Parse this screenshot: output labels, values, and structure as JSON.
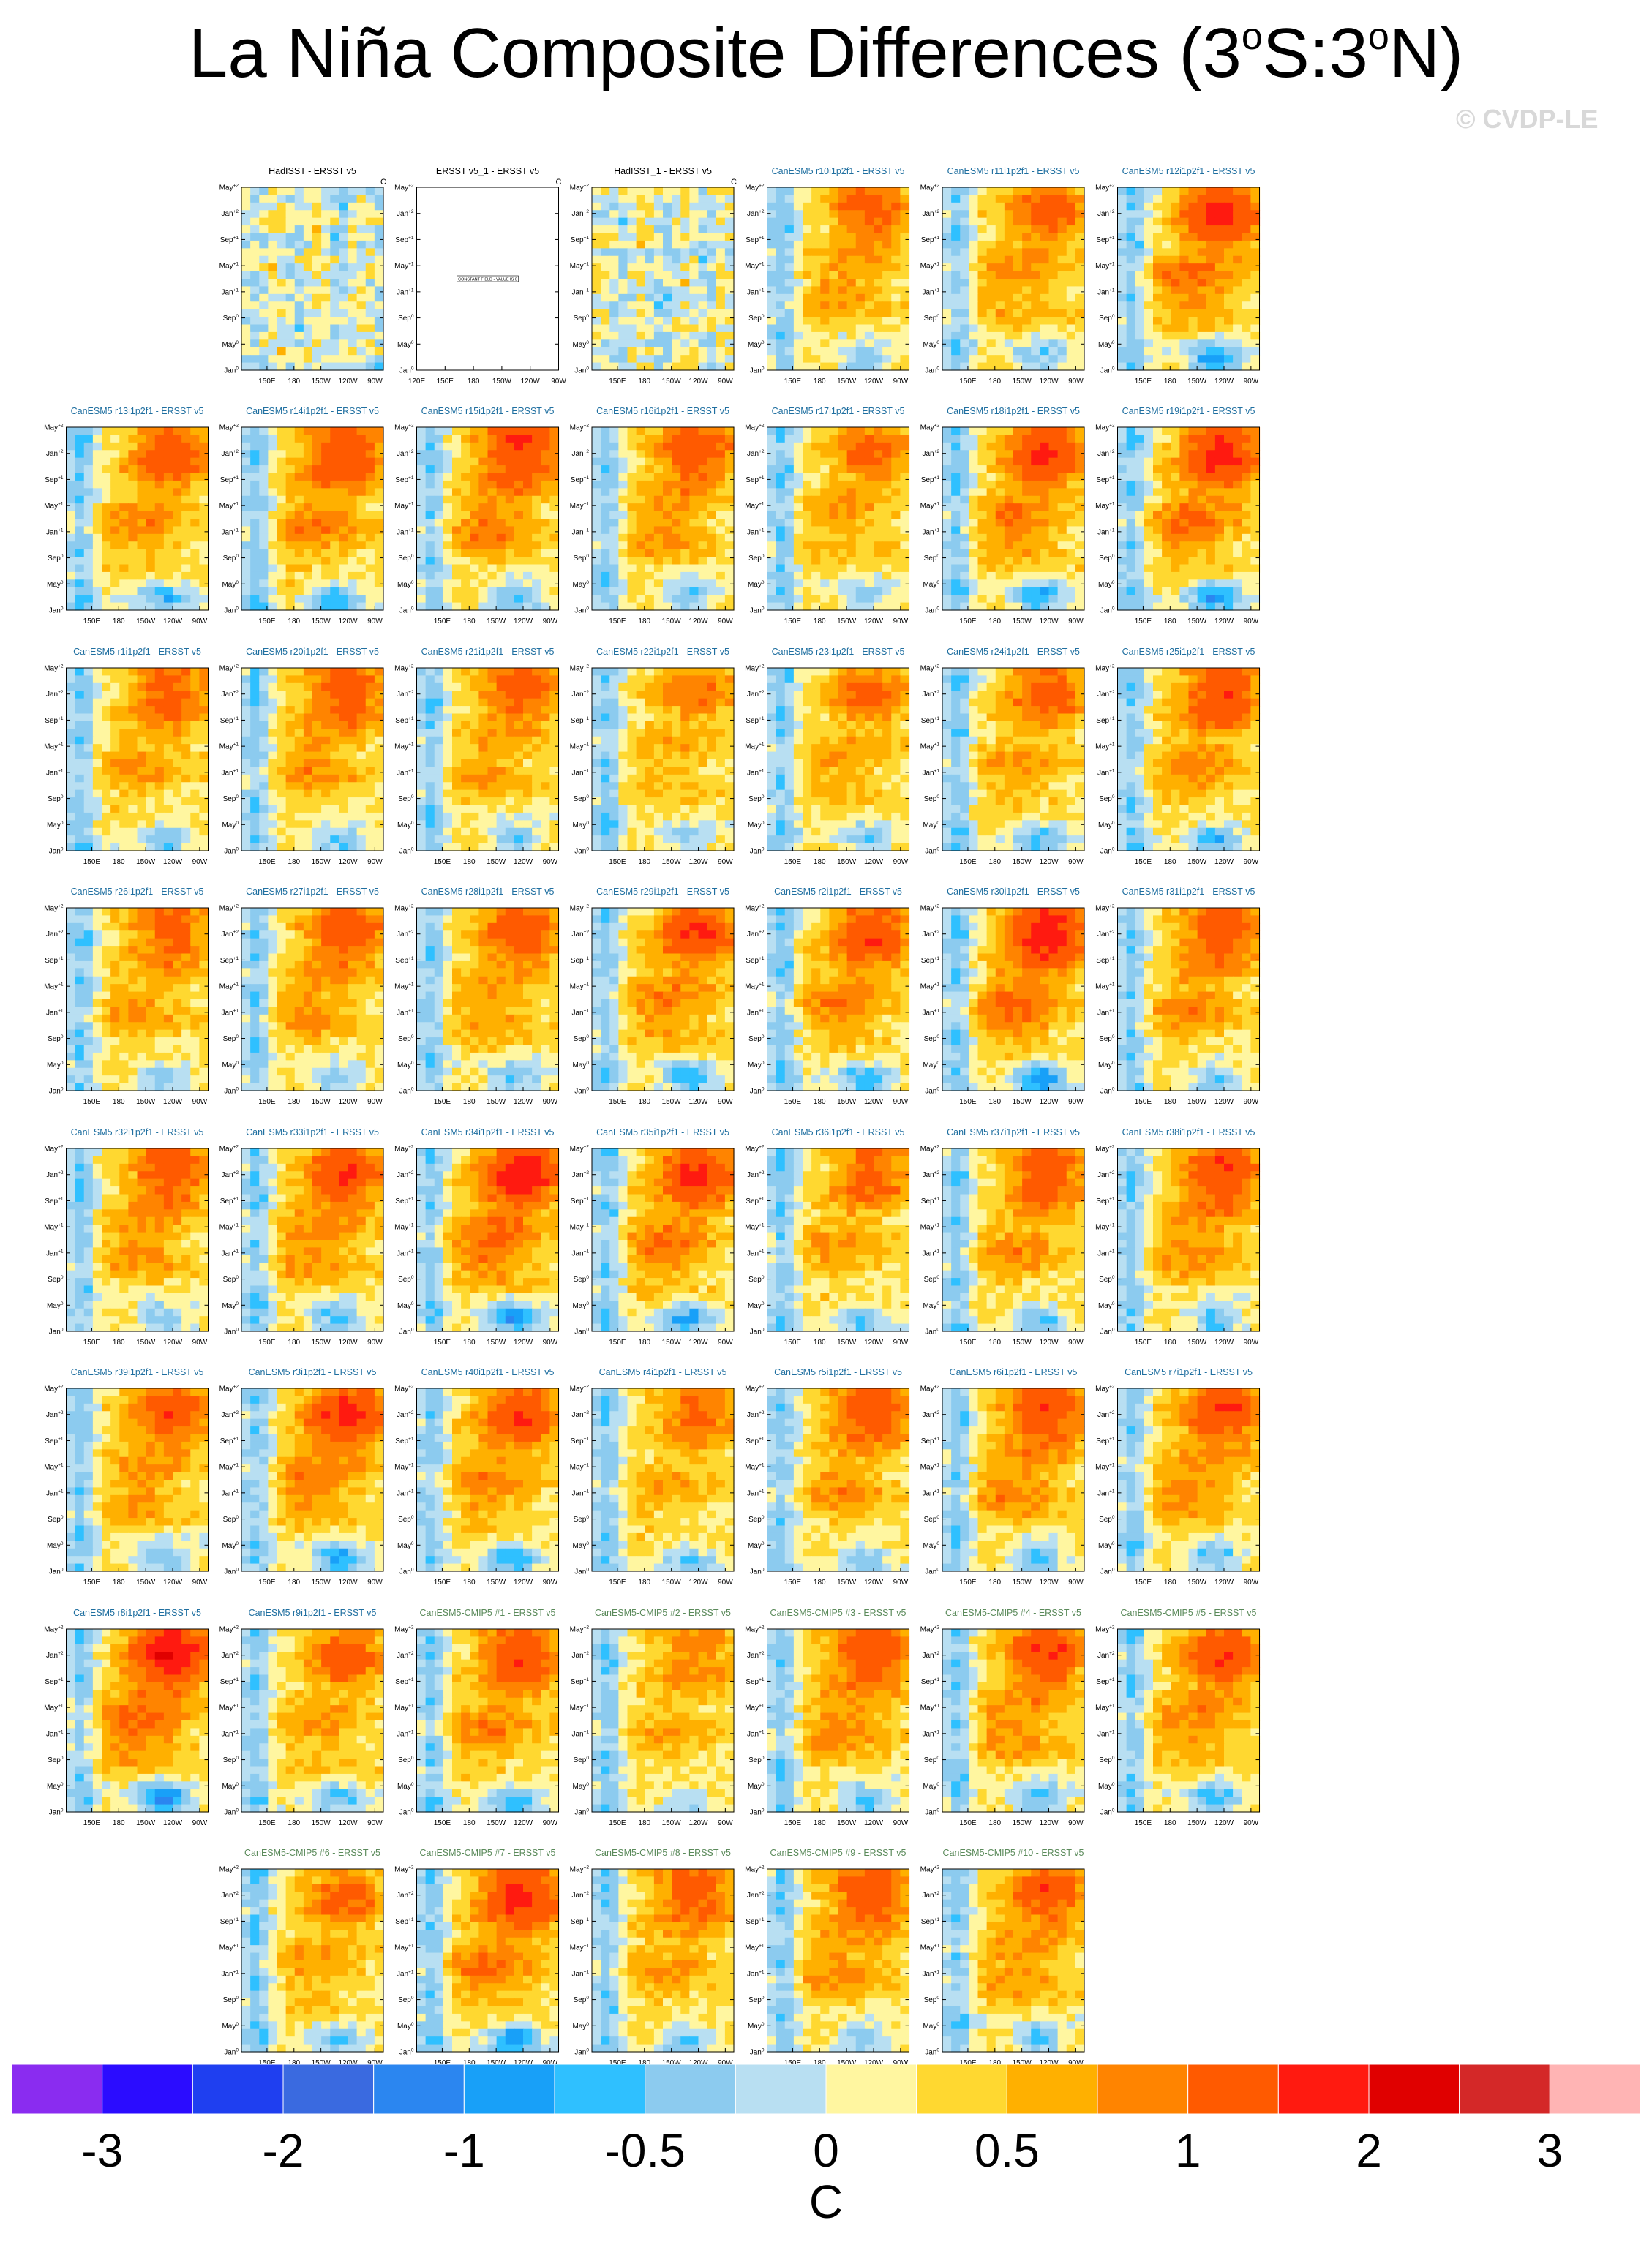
{
  "title": {
    "prefix": "La Niña Composite Differences (3",
    "deg1": "o",
    "mid": "S:3",
    "deg2": "o",
    "suffix": "N)"
  },
  "watermark": "© CVDP-LE",
  "colors": {
    "obs_title": "#000000",
    "model_title": "#1f6fa0",
    "cmip5_title": "#5a8a5a"
  },
  "chart_data": {
    "type": "heatmap",
    "panel_units": "C",
    "x_ticks": [
      "150E",
      "180",
      "150W",
      "120W",
      "90W"
    ],
    "x_ticks_first_extra": [
      "120E",
      "150E",
      "180",
      "150W",
      "120W",
      "90W"
    ],
    "y_ticks": [
      {
        "base": "May",
        "sup": "+2"
      },
      {
        "base": "Jan",
        "sup": "+2"
      },
      {
        "base": "Sep",
        "sup": "+1"
      },
      {
        "base": "May",
        "sup": "+1"
      },
      {
        "base": "Jan",
        "sup": "+1"
      },
      {
        "base": "Sep",
        "sup": "0"
      },
      {
        "base": "May",
        "sup": "0"
      },
      {
        "base": "Jan",
        "sup": "0"
      }
    ],
    "constant_field_label": "CONSTANT FIELD - VALUE IS 0",
    "panels": [
      {
        "title": "HadISST - ERSST v5",
        "kind": "obs",
        "units": "C",
        "strength": 0.2,
        "seed": 1
      },
      {
        "title": "ERSST v5_1 - ERSST v5",
        "kind": "obs",
        "units": "C",
        "constant": true,
        "seed": 2
      },
      {
        "title": "HadISST_1 - ERSST v5",
        "kind": "obs",
        "units": "C",
        "strength": 0.2,
        "seed": 3
      },
      {
        "title": "CanESM5 r10i1p2f1 - ERSST v5",
        "kind": "model",
        "strength": 0.8,
        "seed": 4
      },
      {
        "title": "CanESM5 r11i1p2f1 - ERSST v5",
        "kind": "model",
        "strength": 0.8,
        "seed": 5
      },
      {
        "title": "CanESM5 r12i1p2f1 - ERSST v5",
        "kind": "model",
        "strength": 1.2,
        "seed": 6
      },
      {
        "title": "CanESM5 r13i1p2f1 - ERSST v5",
        "kind": "model",
        "strength": 0.9,
        "seed": 7
      },
      {
        "title": "CanESM5 r14i1p2f1 - ERSST v5",
        "kind": "model",
        "strength": 1.0,
        "seed": 8
      },
      {
        "title": "CanESM5 r15i1p2f1 - ERSST v5",
        "kind": "model",
        "strength": 1.1,
        "seed": 9
      },
      {
        "title": "CanESM5 r16i1p2f1 - ERSST v5",
        "kind": "model",
        "strength": 0.9,
        "seed": 10
      },
      {
        "title": "CanESM5 r17i1p2f1 - ERSST v5",
        "kind": "model",
        "strength": 0.7,
        "seed": 11
      },
      {
        "title": "CanESM5 r18i1p2f1 - ERSST v5",
        "kind": "model",
        "strength": 1.1,
        "seed": 12
      },
      {
        "title": "CanESM5 r19i1p2f1 - ERSST v5",
        "kind": "model",
        "strength": 1.2,
        "seed": 13
      },
      {
        "title": "CanESM5 r1i1p2f1 - ERSST v5",
        "kind": "model",
        "strength": 0.8,
        "seed": 14
      },
      {
        "title": "CanESM5 r20i1p2f1 - ERSST v5",
        "kind": "model",
        "strength": 0.9,
        "seed": 15
      },
      {
        "title": "CanESM5 r21i1p2f1 - ERSST v5",
        "kind": "model",
        "strength": 0.8,
        "seed": 16
      },
      {
        "title": "CanESM5 r22i1p2f1 - ERSST v5",
        "kind": "model",
        "strength": 0.6,
        "seed": 17
      },
      {
        "title": "CanESM5 r23i1p2f1 - ERSST v5",
        "kind": "model",
        "strength": 0.7,
        "seed": 18
      },
      {
        "title": "CanESM5 r24i1p2f1 - ERSST v5",
        "kind": "model",
        "strength": 0.8,
        "seed": 19
      },
      {
        "title": "CanESM5 r25i1p2f1 - ERSST v5",
        "kind": "model",
        "strength": 1.0,
        "seed": 20
      },
      {
        "title": "CanESM5 r26i1p2f1 - ERSST v5",
        "kind": "model",
        "strength": 0.8,
        "seed": 21
      },
      {
        "title": "CanESM5 r27i1p2f1 - ERSST v5",
        "kind": "model",
        "strength": 0.9,
        "seed": 22
      },
      {
        "title": "CanESM5 r28i1p2f1 - ERSST v5",
        "kind": "model",
        "strength": 0.9,
        "seed": 23
      },
      {
        "title": "CanESM5 r29i1p2f1 - ERSST v5",
        "kind": "model",
        "strength": 1.0,
        "seed": 24
      },
      {
        "title": "CanESM5 r2i1p2f1 - ERSST v5",
        "kind": "model",
        "strength": 1.0,
        "seed": 25
      },
      {
        "title": "CanESM5 r30i1p2f1 - ERSST v5",
        "kind": "model",
        "strength": 1.3,
        "seed": 26
      },
      {
        "title": "CanESM5 r31i1p2f1 - ERSST v5",
        "kind": "model",
        "strength": 0.9,
        "seed": 27
      },
      {
        "title": "CanESM5 r32i1p2f1 - ERSST v5",
        "kind": "model",
        "strength": 0.9,
        "seed": 28
      },
      {
        "title": "CanESM5 r33i1p2f1 - ERSST v5",
        "kind": "model",
        "strength": 1.0,
        "seed": 29
      },
      {
        "title": "CanESM5 r34i1p2f1 - ERSST v5",
        "kind": "model",
        "strength": 1.3,
        "seed": 30
      },
      {
        "title": "CanESM5 r35i1p2f1 - ERSST v5",
        "kind": "model",
        "strength": 1.1,
        "seed": 31
      },
      {
        "title": "CanESM5 r36i1p2f1 - ERSST v5",
        "kind": "model",
        "strength": 0.8,
        "seed": 32
      },
      {
        "title": "CanESM5 r37i1p2f1 - ERSST v5",
        "kind": "model",
        "strength": 0.9,
        "seed": 33
      },
      {
        "title": "CanESM5 r38i1p2f1 - ERSST v5",
        "kind": "model",
        "strength": 1.0,
        "seed": 34
      },
      {
        "title": "CanESM5 r39i1p2f1 - ERSST v5",
        "kind": "model",
        "strength": 0.9,
        "seed": 35
      },
      {
        "title": "CanESM5 r3i1p2f1 - ERSST v5",
        "kind": "model",
        "strength": 1.1,
        "seed": 36
      },
      {
        "title": "CanESM5 r40i1p2f1 - ERSST v5",
        "kind": "model",
        "strength": 1.0,
        "seed": 37
      },
      {
        "title": "CanESM5 r4i1p2f1 - ERSST v5",
        "kind": "model",
        "strength": 0.7,
        "seed": 38
      },
      {
        "title": "CanESM5 r5i1p2f1 - ERSST v5",
        "kind": "model",
        "strength": 0.9,
        "seed": 39
      },
      {
        "title": "CanESM5 r6i1p2f1 - ERSST v5",
        "kind": "model",
        "strength": 1.0,
        "seed": 40
      },
      {
        "title": "CanESM5 r7i1p2f1 - ERSST v5",
        "kind": "model",
        "strength": 1.0,
        "seed": 41
      },
      {
        "title": "CanESM5 r8i1p2f1 - ERSST v5",
        "kind": "model",
        "strength": 1.4,
        "seed": 42
      },
      {
        "title": "CanESM5 r9i1p2f1 - ERSST v5",
        "kind": "model",
        "strength": 0.8,
        "seed": 43
      },
      {
        "title": "CanESM5-CMIP5 #1 - ERSST v5",
        "kind": "cmip5",
        "strength": 1.0,
        "seed": 44
      },
      {
        "title": "CanESM5-CMIP5 #2 - ERSST v5",
        "kind": "cmip5",
        "strength": 0.6,
        "seed": 45
      },
      {
        "title": "CanESM5-CMIP5 #3 - ERSST v5",
        "kind": "cmip5",
        "strength": 1.0,
        "seed": 46
      },
      {
        "title": "CanESM5-CMIP5 #4 - ERSST v5",
        "kind": "cmip5",
        "strength": 1.0,
        "seed": 47
      },
      {
        "title": "CanESM5-CMIP5 #5 - ERSST v5",
        "kind": "cmip5",
        "strength": 1.0,
        "seed": 48
      },
      {
        "title": "CanESM5-CMIP5 #6 - ERSST v5",
        "kind": "cmip5",
        "strength": 0.7,
        "seed": 49
      },
      {
        "title": "CanESM5-CMIP5 #7 - ERSST v5",
        "kind": "cmip5",
        "strength": 1.2,
        "seed": 50
      },
      {
        "title": "CanESM5-CMIP5 #8 - ERSST v5",
        "kind": "cmip5",
        "strength": 0.8,
        "seed": 51
      },
      {
        "title": "CanESM5-CMIP5 #9 - ERSST v5",
        "kind": "cmip5",
        "strength": 0.9,
        "seed": 52
      },
      {
        "title": "CanESM5-CMIP5 #10 - ERSST v5",
        "kind": "cmip5",
        "strength": 0.9,
        "seed": 53
      }
    ],
    "colorbar": {
      "label": "C",
      "colors": [
        "#8a2cf0",
        "#2b0cff",
        "#1f3ff0",
        "#3a6ae0",
        "#2b86f0",
        "#18a0f8",
        "#2fc0ff",
        "#8ccbef",
        "#b8dff2",
        "#fff6a0",
        "#ffd830",
        "#ffb000",
        "#ff8400",
        "#ff5a00",
        "#ff1a10",
        "#e00000",
        "#d42828",
        "#ffb4b4"
      ],
      "levels": [
        -3,
        -2.5,
        -2,
        -1.5,
        -1,
        -0.75,
        -0.5,
        -0.25,
        0,
        0.25,
        0.5,
        0.75,
        1,
        1.5,
        2,
        2.5,
        3
      ],
      "tick_labels": [
        "-3",
        "-2",
        "-1",
        "-0.5",
        "0",
        "0.5",
        "1",
        "2",
        "3"
      ]
    }
  }
}
